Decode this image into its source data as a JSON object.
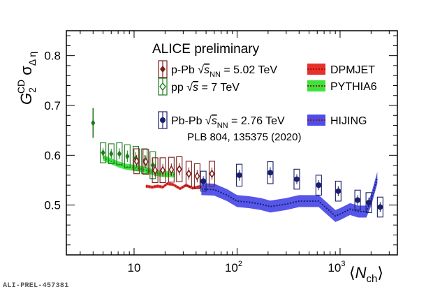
{
  "chart_data": {
    "type": "scatter",
    "title": "ALICE preliminary",
    "ylabel": "G_2^{CD} σ_{Δη}",
    "xlabel": "⟨N_ch⟩",
    "xscale": "log",
    "xlim": [
      2.2,
      3600
    ],
    "ylim": [
      0.4,
      0.85
    ],
    "grid": false,
    "legend_position": "top-right",
    "x_ticks": [
      {
        "value": 10,
        "label": "10"
      },
      {
        "value": 100,
        "label": "10",
        "exp": "2"
      },
      {
        "value": 1000,
        "label": "10",
        "exp": "3"
      }
    ],
    "y_ticks": [
      {
        "value": 0.5,
        "label": "0.5"
      },
      {
        "value": 0.6,
        "label": "0.6"
      },
      {
        "value": 0.7,
        "label": "0.7"
      },
      {
        "value": 0.8,
        "label": "0.8"
      }
    ],
    "legend": [
      {
        "label": "p-Pb",
        "sqrt_label": "s",
        "sqrt_sub": "NN",
        "energy": " = 5.02 TeV",
        "color": "#7a1c1c",
        "marker": "diamond"
      },
      {
        "label": "pp",
        "sqrt_label": "s",
        "sqrt_sub": "",
        "energy": " = 7 TeV",
        "color": "#1e7b1e",
        "marker": "diamond-open"
      },
      {
        "label": "DPMJET",
        "color": "#e8302a",
        "marker": "band"
      },
      {
        "label": "PYTHIA6",
        "color": "#3ce33c",
        "marker": "band"
      },
      {
        "label": "Pb-Pb",
        "sqrt_label": "s",
        "sqrt_sub": "NN",
        "energy": " = 2.76 TeV",
        "color": "#1a1f6b",
        "marker": "circle"
      },
      {
        "label": "HIJING",
        "color": "#4d4de8",
        "marker": "band"
      }
    ],
    "reference": "PLB 804, 135375 (2020)",
    "series": [
      {
        "name": "pp √s = 7 TeV",
        "color": "#1e7b1e",
        "points": [
          {
            "x": 4.0,
            "y": 0.665,
            "err": 0.03
          },
          {
            "x": 5.0,
            "y": 0.605,
            "sys": 0.02
          },
          {
            "x": 6.0,
            "y": 0.603,
            "sys": 0.02
          },
          {
            "x": 7.2,
            "y": 0.603,
            "sys": 0.022
          },
          {
            "x": 8.6,
            "y": 0.598,
            "sys": 0.023
          },
          {
            "x": 10.4,
            "y": 0.594,
            "sys": 0.024
          },
          {
            "x": 12.6,
            "y": 0.588,
            "sys": 0.025
          },
          {
            "x": 15.2,
            "y": 0.58,
            "sys": 0.027
          }
        ]
      },
      {
        "name": "p-Pb √sNN = 5.02 TeV",
        "color": "#7a1c1c",
        "points": [
          {
            "x": 10.6,
            "y": 0.588,
            "sys": 0.025
          },
          {
            "x": 13.0,
            "y": 0.587,
            "sys": 0.025
          },
          {
            "x": 16.0,
            "y": 0.57,
            "sys": 0.025
          },
          {
            "x": 19.0,
            "y": 0.57,
            "sys": 0.025
          },
          {
            "x": 23.0,
            "y": 0.571,
            "sys": 0.025
          },
          {
            "x": 27.5,
            "y": 0.572,
            "sys": 0.025
          },
          {
            "x": 34.0,
            "y": 0.563,
            "sys": 0.025
          },
          {
            "x": 41.0,
            "y": 0.558,
            "sys": 0.025
          },
          {
            "x": 57.0,
            "y": 0.563,
            "sys": 0.025
          }
        ]
      },
      {
        "name": "Pb-Pb √sNN = 2.76 TeV",
        "color": "#1a1f6b",
        "points": [
          {
            "x": 47.0,
            "y": 0.548,
            "sys": 0.02
          },
          {
            "x": 105.0,
            "y": 0.56,
            "sys": 0.022
          },
          {
            "x": 210.0,
            "y": 0.565,
            "sys": 0.022
          },
          {
            "x": 380.0,
            "y": 0.552,
            "sys": 0.02
          },
          {
            "x": 620.0,
            "y": 0.54,
            "sys": 0.02
          },
          {
            "x": 960.0,
            "y": 0.528,
            "sys": 0.02
          },
          {
            "x": 1480.0,
            "y": 0.51,
            "sys": 0.02
          },
          {
            "x": 1900.0,
            "y": 0.505,
            "sys": 0.02
          },
          {
            "x": 2450.0,
            "y": 0.496,
            "sys": 0.02
          }
        ]
      }
    ],
    "bands": [
      {
        "name": "PYTHIA6",
        "color": "#3ce33c",
        "x": [
          5,
          6,
          7,
          8,
          9,
          10,
          12,
          14,
          16,
          18,
          20,
          22,
          25
        ],
        "y": [
          0.595,
          0.588,
          0.582,
          0.578,
          0.576,
          0.575,
          0.572,
          0.568,
          0.565,
          0.563,
          0.562,
          0.562,
          0.561
        ],
        "half_width": 0.006
      },
      {
        "name": "DPMJET",
        "color": "#e8302a",
        "x": [
          13,
          15,
          17,
          19,
          21,
          24,
          28,
          32,
          37,
          43,
          50
        ],
        "y": [
          0.538,
          0.536,
          0.538,
          0.536,
          0.543,
          0.541,
          0.533,
          0.54,
          0.534,
          0.537,
          0.535
        ],
        "half_width": 0.003
      },
      {
        "name": "HIJING",
        "color": "#4d4de8",
        "x": [
          45,
          60,
          80,
          100,
          130,
          170,
          210,
          300,
          400,
          620,
          900,
          1000,
          1250,
          1500,
          1800,
          2000,
          2300
        ],
        "y": [
          0.532,
          0.531,
          0.52,
          0.508,
          0.506,
          0.502,
          0.497,
          0.502,
          0.508,
          0.508,
          0.478,
          0.482,
          0.492,
          0.487,
          0.487,
          0.51,
          0.555
        ],
        "half_width": 0.012
      }
    ]
  },
  "footer_id": "ALI-PREL-457381"
}
